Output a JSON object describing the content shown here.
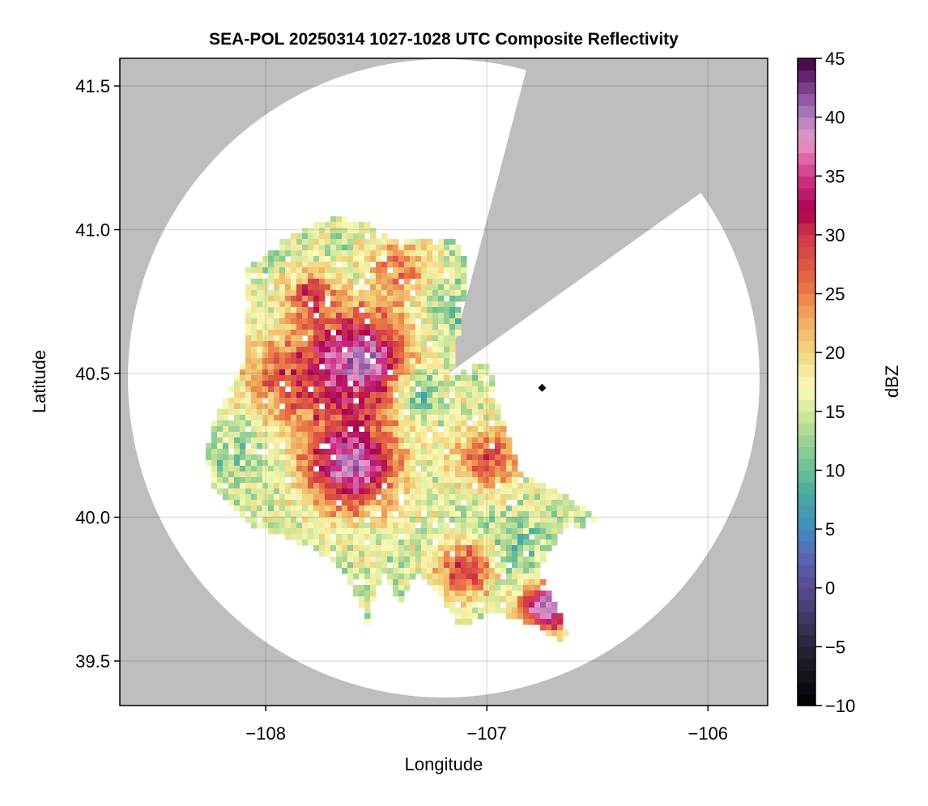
{
  "chart_data": {
    "type": "heatmap",
    "title": "SEA-POL 20250314 1027-1028 UTC Composite Reflectivity",
    "xlabel": "Longitude",
    "ylabel": "Latitude",
    "xlim": [
      -108.66,
      -105.73
    ],
    "ylim": [
      39.345,
      41.596
    ],
    "xticks": [
      {
        "value": -108,
        "label": "−108"
      },
      {
        "value": -107,
        "label": "−107"
      },
      {
        "value": -106,
        "label": "−106"
      }
    ],
    "yticks": [
      {
        "value": 39.5,
        "label": "39.5"
      },
      {
        "value": 40.0,
        "label": "40.0"
      },
      {
        "value": 40.5,
        "label": "40.5"
      },
      {
        "value": 41.0,
        "label": "41.0"
      },
      {
        "value": 41.5,
        "label": "41.5"
      }
    ],
    "grid": true,
    "background_color": "#bebebe",
    "radar_site": {
      "lon": -107.2,
      "lat": 40.49
    },
    "marker": {
      "lon": -106.75,
      "lat": 40.45,
      "shape": "diamond",
      "color": "#000000"
    },
    "colorbar": {
      "label": "dBZ",
      "range": [
        -10,
        45
      ],
      "ticks": [
        {
          "value": -10,
          "label": "−10"
        },
        {
          "value": -5,
          "label": "−5"
        },
        {
          "value": 0,
          "label": "0"
        },
        {
          "value": 5,
          "label": "5"
        },
        {
          "value": 10,
          "label": "10"
        },
        {
          "value": 15,
          "label": "15"
        },
        {
          "value": 20,
          "label": "20"
        },
        {
          "value": 25,
          "label": "25"
        },
        {
          "value": 30,
          "label": "30"
        },
        {
          "value": 35,
          "label": "35"
        },
        {
          "value": 40,
          "label": "40"
        },
        {
          "value": 45,
          "label": "45"
        }
      ],
      "stops": [
        [
          -10,
          "#000000"
        ],
        [
          -5,
          "#2a2338"
        ],
        [
          0,
          "#5a4a90"
        ],
        [
          3,
          "#5a6ab8"
        ],
        [
          5,
          "#3f8cc0"
        ],
        [
          8,
          "#4aaaa0"
        ],
        [
          10,
          "#6abf94"
        ],
        [
          13,
          "#a8d694"
        ],
        [
          15,
          "#d5e89a"
        ],
        [
          17,
          "#fafab8"
        ],
        [
          20,
          "#f2d680"
        ],
        [
          23,
          "#f0aa60"
        ],
        [
          26,
          "#e86a40"
        ],
        [
          30,
          "#d0384a"
        ],
        [
          32,
          "#a80050"
        ],
        [
          35,
          "#d0388a"
        ],
        [
          38,
          "#e898c8"
        ],
        [
          40,
          "#b080c0"
        ],
        [
          42,
          "#8a4a9a"
        ],
        [
          45,
          "#400040"
        ]
      ]
    }
  }
}
